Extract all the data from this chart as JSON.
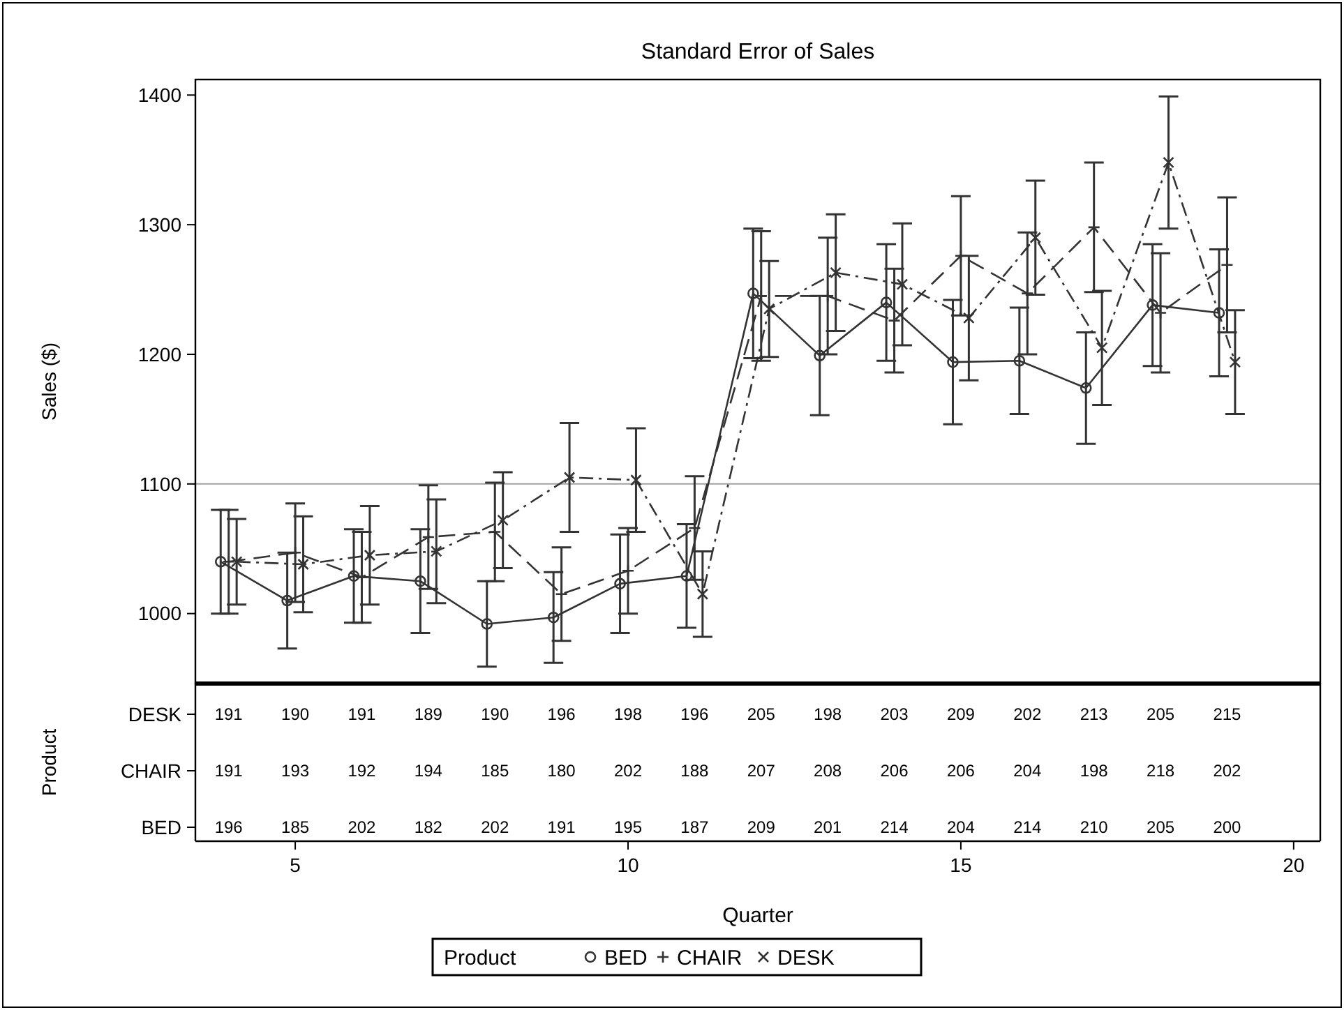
{
  "chart_data": [
    {
      "type": "line",
      "title": "Standard Error of Sales",
      "ylabel": "Sales ($)",
      "legend_title": "Product",
      "legend": "bottom",
      "x": [
        4,
        5,
        6,
        7,
        8,
        9,
        10,
        11,
        12,
        13,
        14,
        15,
        16,
        17,
        18,
        19
      ],
      "xlim": [
        3.5,
        20.4
      ],
      "ylim": [
        946,
        1412
      ],
      "tick_labels": "y",
      "yticks": [
        1000,
        1100,
        1200,
        1300,
        1400
      ],
      "ref_lines": [
        {
          "axis": "y",
          "value": 1100,
          "color": "#a0a0a0"
        }
      ],
      "series": [
        {
          "name": "BED",
          "color": "#333333",
          "marker": "circle",
          "line_style": "solid",
          "x": [
            3.88,
            4.88,
            5.88,
            6.88,
            7.88,
            8.88,
            9.88,
            10.88,
            11.88,
            12.88,
            13.88,
            14.88,
            15.88,
            16.88,
            17.88,
            18.88
          ],
          "values": [
            1040,
            1010,
            1029,
            1025,
            992,
            997,
            1023,
            1029,
            1247,
            1199,
            1240,
            1194,
            1195,
            1174,
            1238,
            1232
          ],
          "errors": [
            40,
            37,
            36,
            40,
            33,
            35,
            38,
            40,
            50,
            46,
            45,
            48,
            41,
            43,
            47,
            49
          ]
        },
        {
          "name": "CHAIR",
          "color": "#333333",
          "marker": "plus",
          "line_style": "dashed",
          "values": [
            1040,
            1047,
            1028,
            1059,
            1063,
            1015,
            1033,
            1066,
            1245,
            1245,
            1226,
            1276,
            1247,
            1298,
            1232,
            1269
          ],
          "errors": [
            40,
            38,
            35,
            40,
            38,
            36,
            33,
            40,
            50,
            45,
            40,
            46,
            47,
            50,
            46,
            52
          ]
        },
        {
          "name": "DESK",
          "color": "#333333",
          "marker": "cross",
          "line_style": "dashdot",
          "x": [
            4.12,
            5.12,
            6.12,
            7.12,
            8.12,
            9.12,
            10.12,
            11.12,
            12.12,
            13.12,
            14.12,
            15.12,
            16.12,
            17.12,
            18.12,
            19.12
          ],
          "values": [
            1040,
            1038,
            1045,
            1048,
            1072,
            1105,
            1103,
            1015,
            1235,
            1263,
            1254,
            1228,
            1290,
            1205,
            1348,
            1194
          ],
          "errors": [
            33,
            37,
            38,
            40,
            37,
            42,
            40,
            33,
            37,
            45,
            47,
            48,
            44,
            44,
            51,
            40
          ]
        }
      ]
    },
    {
      "type": "heatmap",
      "xlabel": "Quarter",
      "ylabel": "Product",
      "x": [
        4,
        5,
        6,
        7,
        8,
        9,
        10,
        11,
        12,
        13,
        14,
        15,
        16,
        17,
        18,
        19
      ],
      "xlim": [
        3.5,
        20.4
      ],
      "xticks": [
        5,
        10,
        15,
        20
      ],
      "data_labels": true,
      "y_categories": [
        "DESK",
        "CHAIR",
        "BED"
      ],
      "cells": [
        [
          191,
          190,
          191,
          189,
          190,
          196,
          198,
          196,
          205,
          198,
          203,
          209,
          202,
          213,
          205,
          215
        ],
        [
          191,
          193,
          192,
          194,
          185,
          180,
          202,
          188,
          207,
          208,
          206,
          206,
          204,
          198,
          218,
          202
        ],
        [
          196,
          185,
          202,
          182,
          202,
          191,
          195,
          187,
          209,
          201,
          214,
          204,
          214,
          210,
          205,
          200
        ]
      ]
    }
  ]
}
